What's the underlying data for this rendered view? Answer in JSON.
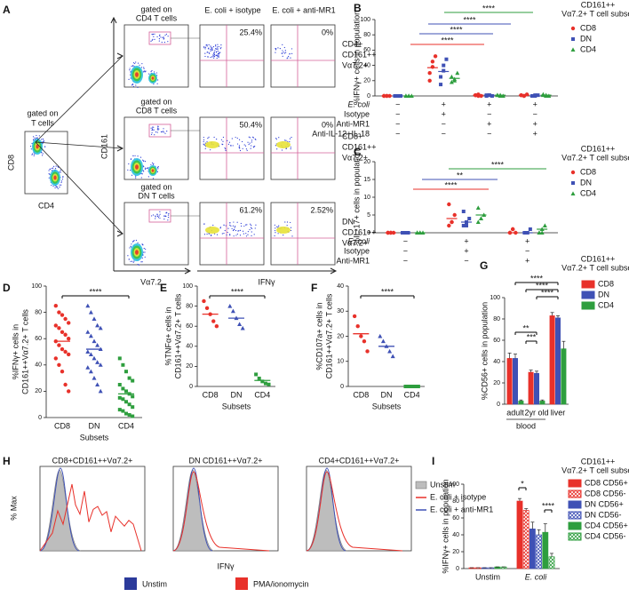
{
  "panel_labels": [
    "A",
    "B",
    "C",
    "D",
    "E",
    "F",
    "G",
    "H",
    "I"
  ],
  "panel_a": {
    "parent_gate": [
      "gated on",
      "T cells"
    ],
    "parent_x": "CD4",
    "parent_y": "CD8",
    "y_label": "CD161",
    "x_label_gate": "Vα7.2",
    "x_label_ifn": "IFNγ",
    "columns": [
      "E. coli + isotype",
      "E. coli + anti-MR1"
    ],
    "rows": [
      {
        "gate": [
          "gated on",
          "CD4 T cells"
        ],
        "isotype": "25.4%",
        "anti_mr1": "0%",
        "subset": [
          "CD4+",
          "CD161++",
          "Vα7.2+"
        ]
      },
      {
        "gate": [
          "gated on",
          "CD8 T cells"
        ],
        "isotype": "50.4%",
        "anti_mr1": "0%",
        "subset": [
          "CD8+",
          "CD161++",
          "Vα7.2+"
        ]
      },
      {
        "gate": [
          "gated on",
          "DN T cells"
        ],
        "isotype": "61.2%",
        "anti_mr1": "2.52%",
        "subset": [
          "DN",
          "CD161++",
          "Vα7.2+"
        ]
      }
    ]
  },
  "chart_data": [
    {
      "type": "dot",
      "y_label": "%IFNγ+ cells in population",
      "legend_title": [
        "CD161++",
        "Vα7.2+ T cell subset"
      ],
      "ylim": [
        0,
        100
      ],
      "yticks": [
        0,
        20,
        40,
        60,
        80,
        100
      ],
      "rows": [
        {
          "label": "E. coli",
          "signs": [
            "−",
            "+",
            "+",
            "+"
          ]
        },
        {
          "label": "Isotype",
          "signs": [
            "−",
            "+",
            "−",
            "−"
          ]
        },
        {
          "label": "Anti-MR1",
          "signs": [
            "−",
            "−",
            "+",
            "+"
          ]
        },
        {
          "label": "Anti-IL-12+IL-18",
          "signs": [
            "−",
            "−",
            "−",
            "+"
          ]
        }
      ],
      "series": [
        {
          "name": "CD8",
          "color": "#e8312a",
          "marker": "circle",
          "values": [
            [
              0,
              0,
              0,
              0,
              0
            ],
            [
              30,
              45,
              52,
              20,
              38
            ],
            [
              1,
              2,
              0,
              1,
              0
            ],
            [
              1,
              0,
              2,
              1,
              0
            ]
          ],
          "means": [
            0,
            37,
            1,
            1
          ]
        },
        {
          "name": "DN",
          "color": "#3f51b5",
          "marker": "square",
          "values": [
            [
              0,
              0,
              0,
              0,
              0
            ],
            [
              25,
              40,
              48,
              15,
              33
            ],
            [
              1,
              1,
              0,
              0,
              1
            ],
            [
              0,
              1,
              1,
              0,
              0
            ]
          ],
          "means": [
            0,
            32,
            1,
            0
          ]
        },
        {
          "name": "CD4",
          "color": "#2e9e3e",
          "marker": "triangle",
          "values": [
            [
              0,
              0,
              0,
              0,
              0
            ],
            [
              18,
              22,
              30,
              25,
              20
            ],
            [
              1,
              0,
              0,
              1,
              1
            ],
            [
              2,
              1,
              0,
              1,
              0
            ]
          ],
          "means": [
            0,
            23,
            1,
            1
          ]
        }
      ],
      "annotations": [
        {
          "text": "****",
          "color": "#2e9e3e"
        },
        {
          "text": "****",
          "color": "#3f51b5"
        },
        {
          "text": "****",
          "color": "#3f51b5"
        },
        {
          "text": "****",
          "color": "#e8312a"
        }
      ]
    },
    {
      "type": "dot",
      "y_label": "%IL-17+ cells in population",
      "legend_title": [
        "CD161++",
        "Vα7.2+ T cell subset"
      ],
      "ylim": [
        0,
        20
      ],
      "yticks": [
        0,
        5,
        10,
        15,
        20
      ],
      "rows": [
        {
          "label": "E. coli",
          "signs": [
            "−",
            "+",
            "+"
          ]
        },
        {
          "label": "Isotype",
          "signs": [
            "−",
            "+",
            "−"
          ]
        },
        {
          "label": "Anti-MR1",
          "signs": [
            "−",
            "−",
            "+"
          ]
        }
      ],
      "series": [
        {
          "name": "CD8",
          "color": "#e8312a",
          "marker": "circle",
          "values": [
            [
              0,
              0,
              0,
              0,
              0
            ],
            [
              2,
              3,
              5,
              8,
              3
            ],
            [
              0,
              1,
              0,
              0,
              1
            ]
          ],
          "means": [
            0,
            4,
            0
          ]
        },
        {
          "name": "DN",
          "color": "#3f51b5",
          "marker": "square",
          "values": [
            [
              0,
              0,
              0,
              0,
              0
            ],
            [
              2,
              3,
              4,
              6,
              2
            ],
            [
              0,
              0,
              1,
              0,
              0
            ]
          ],
          "means": [
            0,
            3,
            0
          ]
        },
        {
          "name": "CD4",
          "color": "#2e9e3e",
          "marker": "triangle",
          "values": [
            [
              0,
              0,
              0,
              0,
              0
            ],
            [
              3,
              4,
              5,
              7,
              4
            ],
            [
              0,
              1,
              2,
              0,
              0
            ]
          ],
          "means": [
            0,
            5,
            1
          ]
        }
      ],
      "annotations": [
        {
          "text": "****",
          "color": "#2e9e3e"
        },
        {
          "text": "**",
          "color": "#3f51b5"
        },
        {
          "text": "****",
          "color": "#e8312a"
        }
      ]
    },
    {
      "type": "strip",
      "y_label": [
        "%IFNγ+ cells in",
        "CD161++Vα7.2+ T cells"
      ],
      "x_label": "Subsets",
      "categories": [
        "CD8",
        "DN",
        "CD4"
      ],
      "colors": [
        "#e8312a",
        "#3f51b5",
        "#2e9e3e"
      ],
      "markers": [
        "circle",
        "triangle",
        "square"
      ],
      "values": [
        [
          85,
          80,
          78,
          75,
          72,
          70,
          68,
          65,
          63,
          60,
          58,
          55,
          52,
          50,
          48,
          45,
          40,
          35,
          25,
          20
        ],
        [
          85,
          80,
          75,
          70,
          68,
          65,
          62,
          58,
          55,
          52,
          50,
          48,
          45,
          42,
          40,
          38,
          35,
          30,
          25,
          20
        ],
        [
          45,
          40,
          35,
          30,
          28,
          25,
          22,
          20,
          18,
          16,
          15,
          14,
          12,
          10,
          8,
          6,
          5,
          3,
          2,
          1
        ]
      ],
      "means": [
        58,
        52,
        18
      ],
      "ylim": [
        0,
        100
      ],
      "yticks": [
        0,
        20,
        40,
        60,
        80,
        100
      ],
      "annotations": [
        {
          "text": "****",
          "color": "#000000"
        }
      ]
    },
    {
      "type": "strip",
      "y_label": [
        "%TNFα+ cells in",
        "CD161++Vα7.2+ T cells"
      ],
      "x_label": "Subsets",
      "categories": [
        "CD8",
        "DN",
        "CD4"
      ],
      "colors": [
        "#e8312a",
        "#3f51b5",
        "#2e9e3e"
      ],
      "markers": [
        "circle",
        "triangle",
        "square"
      ],
      "values": [
        [
          85,
          78,
          72,
          65,
          60
        ],
        [
          80,
          75,
          68,
          62,
          58
        ],
        [
          12,
          8,
          5,
          3,
          2
        ]
      ],
      "means": [
        72,
        68,
        6
      ],
      "ylim": [
        0,
        100
      ],
      "yticks": [
        0,
        20,
        40,
        60,
        80,
        100
      ],
      "annotations": [
        {
          "text": "****",
          "color": "#000000"
        }
      ]
    },
    {
      "type": "strip",
      "y_label": [
        "%CD107a+ cells in",
        "CD161++Vα7.2+ T cells"
      ],
      "x_label": "Subsets",
      "categories": [
        "CD8",
        "DN",
        "CD4"
      ],
      "colors": [
        "#e8312a",
        "#3f51b5",
        "#2e9e3e"
      ],
      "markers": [
        "circle",
        "triangle",
        "square"
      ],
      "values": [
        [
          28,
          24,
          20,
          18,
          14
        ],
        [
          20,
          18,
          16,
          14,
          12
        ],
        [
          0,
          0,
          0,
          0,
          0
        ]
      ],
      "means": [
        21,
        16,
        0
      ],
      "ylim": [
        0,
        40
      ],
      "yticks": [
        0,
        10,
        20,
        30,
        40
      ],
      "annotations": [
        {
          "text": "****",
          "color": "#000000"
        }
      ]
    },
    {
      "type": "bar",
      "y_label": "%CD56+ cells in population",
      "categories": [
        "adult",
        "2yr old",
        "liver"
      ],
      "group_label": "blood",
      "legend_title": [
        "CD161++",
        "Vα7.2+ T cell subset"
      ],
      "ylim": [
        0,
        100
      ],
      "yticks": [
        0,
        20,
        40,
        60,
        80,
        100
      ],
      "series": [
        {
          "name": "CD8",
          "color": "#e8312a",
          "values": [
            43,
            30,
            83
          ],
          "errors": [
            5,
            2,
            3
          ]
        },
        {
          "name": "DN",
          "color": "#3f51b5",
          "values": [
            43,
            29,
            81
          ],
          "errors": [
            4,
            2,
            2
          ]
        },
        {
          "name": "CD4",
          "color": "#2e9e3e",
          "values": [
            3,
            3,
            52
          ],
          "errors": [
            1,
            1,
            7
          ]
        }
      ],
      "annotations": [
        {
          "text": "****",
          "color": "#000000"
        },
        {
          "text": "****",
          "color": "#000000"
        },
        {
          "text": "****",
          "color": "#000000"
        },
        {
          "text": "**",
          "color": "#000000"
        },
        {
          "text": "***",
          "color": "#000000"
        }
      ]
    },
    {
      "type": "bar",
      "y_label": "%IFNγ+ cells in population",
      "categories": [
        "Unstim",
        "E. coli"
      ],
      "legend_title": [
        "CD161++",
        "Vα7.2+ T cell subset"
      ],
      "ylim": [
        0,
        100
      ],
      "yticks": [
        0,
        20,
        40,
        60,
        80,
        100
      ],
      "series": [
        {
          "name": "CD8 CD56+",
          "color": "#e8312a",
          "hatch": false,
          "values": [
            1,
            80
          ],
          "errors": [
            0,
            3
          ]
        },
        {
          "name": "CD8 CD56-",
          "color": "#e8312a",
          "hatch": true,
          "values": [
            1,
            69
          ],
          "errors": [
            0,
            2
          ]
        },
        {
          "name": "DN CD56+",
          "color": "#3f51b5",
          "hatch": false,
          "values": [
            1,
            47
          ],
          "errors": [
            0,
            8
          ]
        },
        {
          "name": "DN CD56-",
          "color": "#3f51b5",
          "hatch": true,
          "values": [
            1,
            40
          ],
          "errors": [
            0,
            6
          ]
        },
        {
          "name": "CD4 CD56+",
          "color": "#2e9e3e",
          "hatch": false,
          "values": [
            2,
            43
          ],
          "errors": [
            0,
            10
          ]
        },
        {
          "name": "CD4 CD56-",
          "color": "#2e9e3e",
          "hatch": true,
          "values": [
            2,
            14
          ],
          "errors": [
            0,
            4
          ]
        }
      ],
      "annotations": [
        {
          "text": "*",
          "color": "#000000"
        },
        {
          "text": "****",
          "color": "#000000"
        }
      ]
    }
  ],
  "panel_h": {
    "titles": [
      "CD8+CD161++Vα7.2+",
      "DN CD161++Vα7.2+",
      "CD4+CD161++Vα7.2+"
    ],
    "x_label": "IFNγ",
    "y_label": "% Max",
    "legend": [
      {
        "name": "Unstim",
        "color": "#bdbdbd"
      },
      {
        "name": "E. coli + isotype",
        "color": "#e8312a"
      },
      {
        "name": "E. coli + anti-MR1",
        "color": "#3f51b5"
      }
    ]
  },
  "footer_legend": [
    {
      "name": "Unstim",
      "color": "#2b3a9b"
    },
    {
      "name": "PMA/ionomycin",
      "color": "#e8312a"
    }
  ]
}
